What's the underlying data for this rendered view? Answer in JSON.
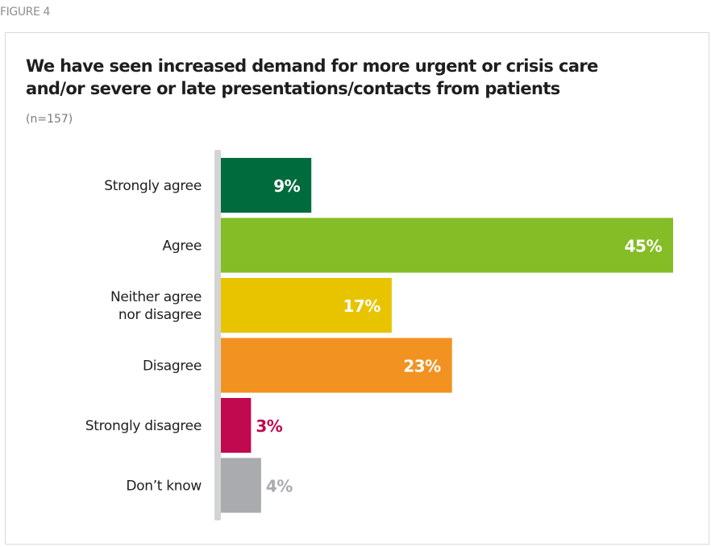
{
  "figure_label": "FIGURE 4",
  "chart_data": {
    "type": "bar",
    "orientation": "horizontal",
    "title": "We have seen increased demand for more urgent or crisis care and/or severe or late presentations/contacts from patients",
    "title_lines": [
      "We have seen increased demand for more urgent or crisis care",
      "and/or severe or late presentations/contacts from patients"
    ],
    "subtitle": "(n=157)",
    "unit": "%",
    "xlim": [
      0,
      45
    ],
    "grid": false,
    "categories": [
      {
        "label": [
          "Strongly agree"
        ],
        "value": 9,
        "display": "9%",
        "color": "#006b3c",
        "label_color": "#ffffff",
        "label_inside": true
      },
      {
        "label": [
          "Agree"
        ],
        "value": 45,
        "display": "45%",
        "color": "#84bd25",
        "label_color": "#ffffff",
        "label_inside": true
      },
      {
        "label": [
          "Neither agree",
          "nor disagree"
        ],
        "value": 17,
        "display": "17%",
        "color": "#e8c400",
        "label_color": "#ffffff",
        "label_inside": true
      },
      {
        "label": [
          "Disagree"
        ],
        "value": 23,
        "display": "23%",
        "color": "#f29321",
        "label_color": "#ffffff",
        "label_inside": true
      },
      {
        "label": [
          "Strongly disagree"
        ],
        "value": 3,
        "display": "3%",
        "color": "#c0094f",
        "label_color": "#c0094f",
        "label_inside": false
      },
      {
        "label": [
          "Don’t know"
        ],
        "value": 4,
        "display": "4%",
        "color": "#a9abae",
        "label_color": "#a9abae",
        "label_inside": false
      }
    ],
    "axis_color": "#d4d4d4"
  }
}
